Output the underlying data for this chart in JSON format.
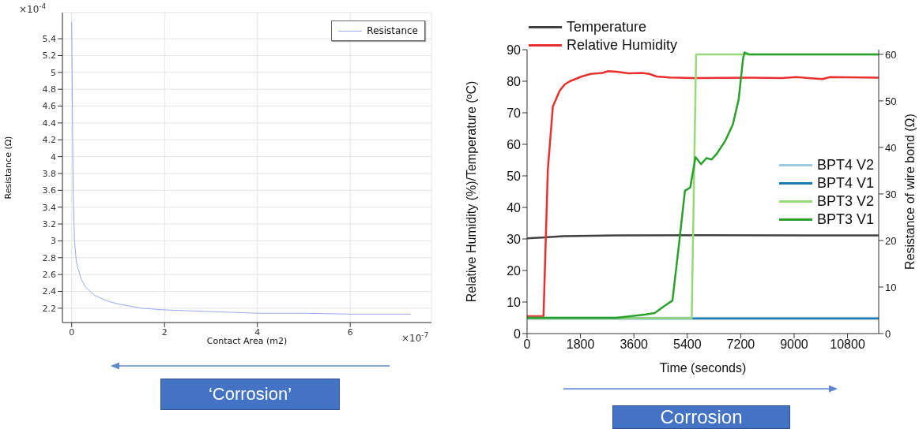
{
  "chart_data": [
    {
      "type": "line",
      "xlabel": "Contact Area (m2)",
      "ylabel": "Resistance (Ω)",
      "annotations": [
        "×10$^{-4}$",
        "×10$^{-7}$",
        "‘Corrosion’"
      ],
      "xlim": [
        -0.2,
        7.75
      ],
      "xticks": [
        0,
        2,
        4,
        6
      ],
      "ylim": [
        2.03,
        5.71
      ],
      "yticks": [
        2.2,
        2.4,
        2.6,
        2.8,
        3,
        3.2,
        3.4,
        3.6,
        3.8,
        4,
        4.2,
        4.4,
        4.6,
        4.8,
        5,
        5.2,
        5.4
      ],
      "grid": true,
      "legend": "top right",
      "marker": "none",
      "line_style": "solid",
      "series": [
        {
          "name": "Resistance",
          "color": "#9aa8f5",
          "x": [
            0,
            0.03,
            0.06,
            0.1,
            0.2,
            0.3,
            0.5,
            0.8,
            1,
            1.5,
            2,
            3,
            4,
            5,
            6,
            7.3
          ],
          "values": [
            5.6,
            3.6,
            3.0,
            2.75,
            2.55,
            2.45,
            2.35,
            2.28,
            2.25,
            2.2,
            2.18,
            2.16,
            2.14,
            2.14,
            2.13,
            2.13
          ]
        }
      ]
    },
    {
      "type": "line",
      "xlabel": "Time (seconds)",
      "ylabel": "Relative Humidity (%)/Temperature (ºC)",
      "y2label": "Resistance of wire bond (Ω)",
      "annotations": [
        "Corrosion"
      ],
      "xlim": [
        0,
        11850
      ],
      "xticks": [
        0,
        1800,
        3600,
        5400,
        7200,
        9000,
        10800
      ],
      "ylim": [
        0,
        90
      ],
      "yticks": [
        0,
        10,
        20,
        30,
        40,
        50,
        60,
        70,
        80,
        90
      ],
      "y2lim": [
        0,
        61
      ],
      "y2ticks": [
        0,
        10,
        20,
        30,
        40,
        50,
        60
      ],
      "grid": false,
      "legend": "top left",
      "marker": "none",
      "line_style": "solid",
      "series": [
        {
          "name": "Temperature",
          "color": "#404040",
          "x": [
            0,
            600,
            1200,
            3000,
            6000,
            11850
          ],
          "values": [
            30.2,
            30.5,
            30.9,
            31.1,
            31.2,
            31.1
          ]
        },
        {
          "name": "Relative Humidity",
          "color": "#e8312f",
          "x": [
            0,
            554,
            700,
            870,
            1100,
            1270,
            1445,
            1840,
            2140,
            2535,
            2730,
            3030,
            3425,
            3870,
            4120,
            4370,
            4810,
            5600,
            7585,
            8575,
            9070,
            9960,
            10210,
            11850
          ],
          "values": [
            5.5,
            5.5,
            52,
            72,
            77,
            79,
            80,
            81.5,
            82.3,
            82.6,
            83.2,
            83,
            82.5,
            82.6,
            82.3,
            81.5,
            81.2,
            81,
            81.1,
            81,
            81.3,
            80.7,
            81.3,
            81.1
          ]
        },
        {
          "name": "BPT4 V2",
          "color": "#9ecae1",
          "axis": "y2",
          "x": [
            0,
            11850
          ],
          "values": [
            3.4,
            3.4
          ]
        },
        {
          "name": "BPT4 V1",
          "color": "#1f77b4",
          "axis": "y2",
          "x": [
            0,
            11850
          ],
          "values": [
            3.2,
            3.2
          ]
        },
        {
          "name": "BPT3 V2",
          "color": "#99d97a",
          "axis": "y2",
          "x": [
            0,
            5548,
            5697,
            11850
          ],
          "values": [
            3.3,
            3.3,
            60,
            60
          ]
        },
        {
          "name": "BPT3 V1",
          "color": "#2ca02c",
          "axis": "y2",
          "x": [
            0,
            3000,
            3600,
            4000,
            4300,
            4600,
            4900,
            4975,
            5123,
            5321,
            5499,
            5677,
            5865,
            6043,
            6221,
            6389,
            6686,
            6933,
            7131,
            7279,
            7329,
            7477,
            11850
          ],
          "values": [
            3.4,
            3.4,
            3.8,
            4.1,
            4.4,
            5.8,
            7.1,
            11.2,
            19.4,
            30.7,
            31.4,
            37.9,
            36.4,
            37.7,
            37.4,
            38.6,
            41.5,
            44.9,
            50.3,
            59.1,
            60.4,
            60,
            60
          ]
        }
      ]
    }
  ]
}
